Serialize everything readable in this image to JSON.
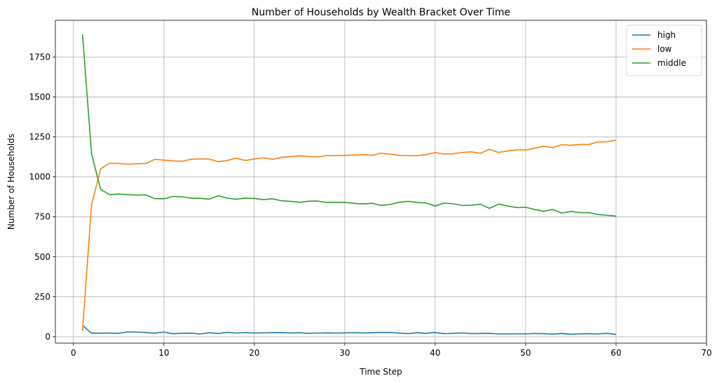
{
  "chart_data": {
    "type": "line",
    "title": "Number of Households by Wealth Bracket Over Time",
    "xlabel": "Time Step",
    "ylabel": "Number of Households",
    "xlim": [
      -2,
      70
    ],
    "ylim": [
      -40,
      1980
    ],
    "xticks": [
      0,
      10,
      20,
      30,
      40,
      50,
      60,
      70
    ],
    "yticks": [
      0,
      250,
      500,
      750,
      1000,
      1250,
      1500,
      1750
    ],
    "grid": true,
    "legend_position": "top-right",
    "x": [
      1,
      2,
      3,
      4,
      5,
      6,
      7,
      8,
      9,
      10,
      11,
      12,
      13,
      14,
      15,
      16,
      17,
      18,
      19,
      20,
      21,
      22,
      23,
      24,
      25,
      26,
      27,
      28,
      29,
      30,
      31,
      32,
      33,
      34,
      35,
      36,
      37,
      38,
      39,
      40,
      41,
      42,
      43,
      44,
      45,
      46,
      47,
      48,
      49,
      50,
      51,
      52,
      53,
      54,
      55,
      56,
      57,
      58,
      59,
      60
    ],
    "series": [
      {
        "name": "high",
        "color": "#1f77b4",
        "values": [
          72,
          22,
          22,
          23,
          21,
          30,
          29,
          26,
          22,
          29,
          19,
          21,
          22,
          17,
          25,
          20,
          27,
          23,
          26,
          23,
          24,
          25,
          26,
          24,
          25,
          21,
          23,
          24,
          23,
          24,
          25,
          24,
          25,
          27,
          26,
          23,
          19,
          25,
          21,
          26,
          19,
          21,
          24,
          19,
          20,
          21,
          17,
          18,
          18,
          18,
          20,
          19,
          16,
          20,
          15,
          18,
          19,
          17,
          21,
          14
        ]
      },
      {
        "name": "low",
        "color": "#ff7f0e",
        "values": [
          36,
          825,
          1050,
          1085,
          1084,
          1080,
          1082,
          1084,
          1110,
          1105,
          1100,
          1098,
          1110,
          1112,
          1112,
          1095,
          1103,
          1117,
          1103,
          1112,
          1120,
          1110,
          1122,
          1127,
          1132,
          1128,
          1125,
          1133,
          1133,
          1135,
          1137,
          1140,
          1135,
          1148,
          1143,
          1135,
          1133,
          1133,
          1140,
          1152,
          1143,
          1145,
          1153,
          1157,
          1148,
          1173,
          1153,
          1162,
          1170,
          1168,
          1180,
          1192,
          1183,
          1202,
          1198,
          1203,
          1203,
          1218,
          1220,
          1230
        ]
      },
      {
        "name": "middle",
        "color": "#2ca02c",
        "values": [
          1892,
          1145,
          922,
          888,
          893,
          889,
          886,
          888,
          864,
          863,
          878,
          876,
          866,
          866,
          860,
          882,
          867,
          860,
          868,
          865,
          858,
          863,
          851,
          847,
          841,
          848,
          849,
          840,
          841,
          840,
          835,
          831,
          835,
          822,
          827,
          841,
          847,
          840,
          837,
          818,
          836,
          832,
          821,
          823,
          829,
          803,
          830,
          818,
          808,
          810,
          796,
          785,
          796,
          774,
          784,
          777,
          776,
          765,
          760,
          755
        ]
      }
    ]
  }
}
